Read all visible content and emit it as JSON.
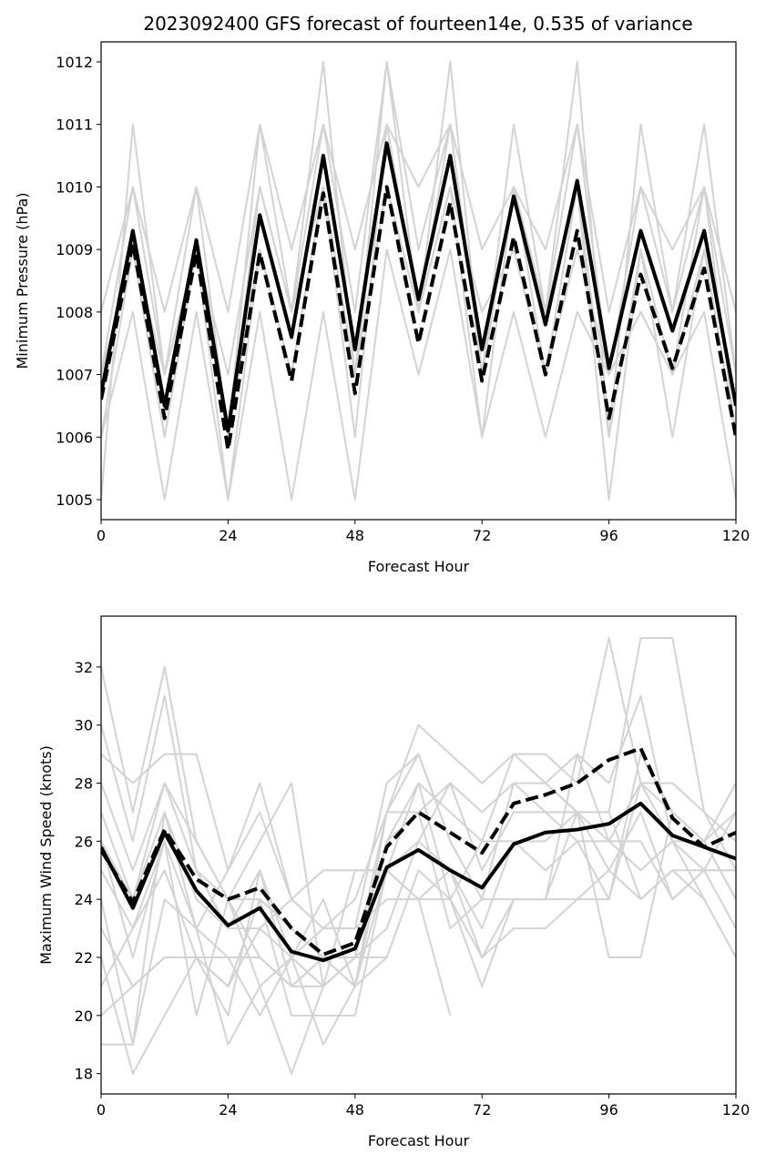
{
  "title": "2023092400 GFS forecast of fourteen14e, 0.535 of variance",
  "colors": {
    "ensemble": "#d3d3d3",
    "mean": "#000000",
    "frame": "#000000"
  },
  "chart_data": [
    {
      "type": "line",
      "xlabel": "Forecast Hour",
      "ylabel": "Minimum Pressure (hPa)",
      "xlim": [
        0,
        120
      ],
      "ylim": [
        1004.68,
        1012.32
      ],
      "xticks": [
        0,
        24,
        48,
        72,
        96,
        120
      ],
      "yticks": [
        1005,
        1006,
        1007,
        1008,
        1009,
        1010,
        1011,
        1012
      ],
      "x": [
        0,
        6,
        12,
        18,
        24,
        30,
        36,
        42,
        48,
        54,
        60,
        66,
        72,
        78,
        84,
        90,
        96,
        102,
        108,
        114,
        120
      ],
      "ensemble": [
        [
          1005,
          1011,
          1007,
          1010,
          1006,
          1011,
          1008,
          1012,
          1007,
          1012,
          1008,
          1012,
          1007,
          1011,
          1008,
          1012,
          1006,
          1011,
          1008,
          1011,
          1007
        ],
        [
          1008,
          1010,
          1008,
          1010,
          1008,
          1011,
          1009,
          1011,
          1009,
          1011,
          1010,
          1011,
          1009,
          1010,
          1009,
          1011,
          1008,
          1010,
          1009,
          1010,
          1008
        ],
        [
          1007,
          1009,
          1006,
          1009,
          1005,
          1009,
          1007,
          1010,
          1006,
          1011,
          1008,
          1010,
          1006,
          1010,
          1007,
          1010,
          1005,
          1009,
          1006,
          1009,
          1006
        ],
        [
          1006,
          1008,
          1005,
          1008,
          1005,
          1008,
          1005,
          1008,
          1005,
          1009,
          1007,
          1009,
          1006,
          1008,
          1006,
          1008,
          1007,
          1008,
          1007,
          1008,
          1005
        ],
        [
          1007,
          1010,
          1007,
          1009,
          1007,
          1010,
          1008,
          1011,
          1008,
          1012,
          1009,
          1011,
          1007,
          1010,
          1008,
          1010,
          1006,
          1009,
          1007,
          1010,
          1006
        ],
        [
          1006,
          1009,
          1006,
          1009,
          1006,
          1009,
          1007,
          1010,
          1007,
          1010,
          1008,
          1010,
          1008,
          1009,
          1007,
          1009,
          1007,
          1008,
          1007,
          1009,
          1006
        ],
        [
          1007,
          1009,
          1007,
          1009,
          1006,
          1010,
          1008,
          1010,
          1007,
          1011,
          1008,
          1011,
          1007,
          1010,
          1008,
          1011,
          1007,
          1010,
          1008,
          1010,
          1007
        ]
      ],
      "solid_mean": [
        1006.7,
        1009.3,
        1006.5,
        1009.15,
        1006.1,
        1009.55,
        1007.6,
        1010.5,
        1007.4,
        1010.7,
        1008.2,
        1010.5,
        1007.4,
        1009.85,
        1007.8,
        1010.1,
        1007.1,
        1009.3,
        1007.7,
        1009.3,
        1006.5
      ],
      "dashed_mean": [
        1006.6,
        1009.1,
        1006.3,
        1008.95,
        1005.8,
        1008.95,
        1006.9,
        1009.9,
        1006.7,
        1010.0,
        1007.5,
        1009.75,
        1006.9,
        1009.2,
        1007.0,
        1009.3,
        1006.3,
        1008.6,
        1007.1,
        1008.7,
        1006.0
      ]
    },
    {
      "type": "line",
      "xlabel": "Forecast Hour",
      "ylabel": "Maximum Wind Speed (knots)",
      "xlim": [
        0,
        120
      ],
      "ylim": [
        17.3,
        33.75
      ],
      "xticks": [
        0,
        24,
        48,
        72,
        96,
        120
      ],
      "yticks": [
        18,
        20,
        22,
        24,
        26,
        28,
        30,
        32
      ],
      "x": [
        0,
        6,
        12,
        18,
        24,
        30,
        36,
        42,
        48,
        54,
        60,
        66,
        72,
        78,
        84,
        90,
        96,
        102,
        108,
        114,
        120
      ],
      "ensemble": [
        [
          32,
          27,
          32,
          26,
          24,
          24,
          23,
          22,
          22,
          26,
          28,
          27,
          26,
          29,
          29,
          28,
          33,
          28,
          28,
          27,
          26
        ],
        [
          30,
          26,
          31,
          25,
          23,
          25,
          22,
          21,
          22,
          27,
          30,
          29,
          28,
          29,
          28,
          29,
          28,
          31,
          26,
          26,
          27
        ],
        [
          29,
          28,
          29,
          29,
          25,
          28,
          24,
          23,
          23,
          28,
          29,
          26,
          24,
          28,
          28,
          27,
          27,
          33,
          33,
          27,
          25
        ],
        [
          28,
          25,
          28,
          26,
          24,
          26,
          28,
          21,
          25,
          25,
          26,
          28,
          27,
          28,
          28,
          27,
          27,
          24,
          25,
          24,
          22
        ],
        [
          27,
          24,
          27,
          24,
          23,
          23,
          22,
          23,
          23,
          24,
          24,
          25,
          23,
          26,
          26,
          27,
          22,
          22,
          27,
          26,
          24
        ],
        [
          26,
          22,
          26,
          23,
          22,
          22,
          21,
          22,
          21,
          26,
          27,
          28,
          25,
          27,
          27,
          26,
          26,
          26,
          24,
          25,
          25
        ],
        [
          25,
          23,
          25,
          22,
          21,
          24,
          20,
          20,
          20,
          25,
          24,
          24,
          22,
          23,
          23,
          24,
          25,
          24,
          25,
          25,
          23
        ],
        [
          24,
          19,
          24,
          23,
          19,
          21,
          18,
          21,
          22,
          23,
          26,
          25,
          22,
          24,
          24,
          24,
          24,
          28,
          27,
          26,
          28
        ],
        [
          23,
          21,
          22,
          22,
          22,
          20,
          22,
          19,
          21,
          22,
          25,
          24,
          26,
          26,
          25,
          26,
          24,
          29,
          27,
          26,
          24
        ],
        [
          22,
          18,
          20,
          22,
          20,
          25,
          21,
          22,
          21,
          25,
          28,
          24,
          21,
          24,
          24,
          27,
          26,
          25,
          26,
          24,
          22
        ],
        [
          21,
          23,
          26,
          20,
          24,
          21,
          22,
          24,
          21,
          27,
          27,
          23,
          24,
          24,
          24,
          29,
          26,
          28,
          26,
          25,
          27
        ],
        [
          20,
          21,
          22,
          22,
          21,
          23,
          24,
          23,
          24,
          27,
          29,
          26,
          24,
          28,
          27,
          27,
          25,
          27,
          24,
          25,
          25
        ],
        [
          19,
          19,
          27,
          23,
          25,
          27,
          24,
          25,
          25,
          25,
          24,
          20,
          null,
          null,
          null,
          null,
          null,
          null,
          null,
          null,
          null
        ],
        [
          26,
          24,
          28,
          25,
          24,
          22,
          21,
          21,
          22,
          22,
          null,
          null,
          null,
          null,
          null,
          null,
          null,
          null,
          null,
          null,
          null
        ]
      ],
      "solid_mean": [
        25.8,
        23.7,
        26.3,
        24.3,
        23.1,
        23.7,
        22.2,
        21.9,
        22.3,
        25.1,
        25.7,
        25.0,
        24.4,
        25.9,
        26.3,
        26.4,
        26.6,
        27.3,
        26.2,
        25.8,
        25.4
      ],
      "dashed_mean": [
        25.7,
        23.9,
        26.4,
        24.7,
        24.0,
        24.4,
        23.0,
        22.1,
        22.5,
        25.8,
        27.0,
        26.3,
        25.6,
        27.3,
        27.6,
        28.0,
        28.8,
        29.2,
        26.8,
        25.8,
        26.3
      ]
    }
  ]
}
